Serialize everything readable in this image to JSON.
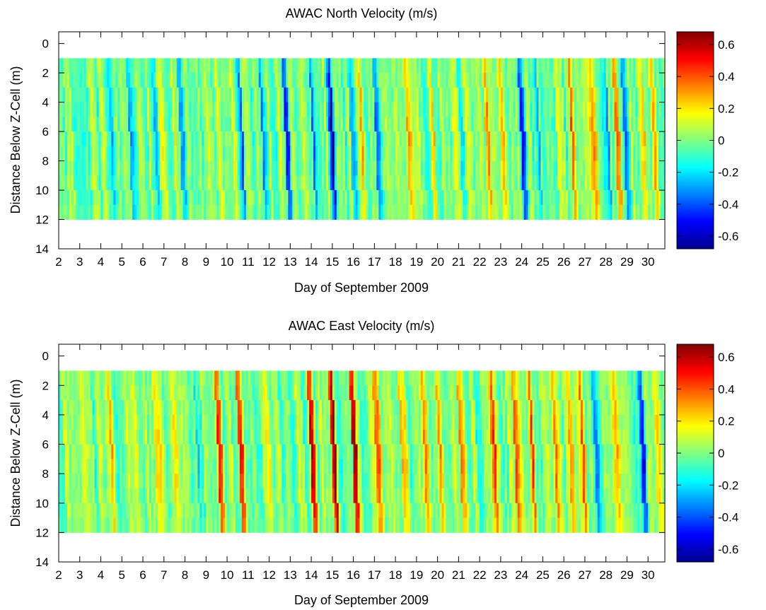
{
  "chart_data": [
    {
      "type": "heatmap",
      "title": "AWAC North Velocity (m/s)",
      "xlabel": "Day of September 2009",
      "ylabel": "Distance Below Z-Cell (m)",
      "xlim": [
        2,
        30.8
      ],
      "ylim": [
        14,
        -0.8
      ],
      "xticks": [
        "2",
        "3",
        "4",
        "5",
        "6",
        "7",
        "8",
        "9",
        "10",
        "11",
        "12",
        "13",
        "14",
        "15",
        "16",
        "17",
        "18",
        "19",
        "20",
        "21",
        "22",
        "23",
        "24",
        "25",
        "26",
        "27",
        "28",
        "29",
        "30"
      ],
      "yticks": [
        "0",
        "2",
        "4",
        "6",
        "8",
        "10",
        "12",
        "14"
      ],
      "data_extent": {
        "x": [
          2,
          30.8
        ],
        "depth": [
          1,
          12
        ]
      },
      "colorbar": {
        "range": [
          -0.68,
          0.68
        ],
        "ticks": [
          "0.6",
          "0.4",
          "0.2",
          "0",
          "-0.2",
          "-0.4",
          "-0.6"
        ],
        "colormap": "jet"
      },
      "features": [
        {
          "day": 3.0,
          "value": -0.2
        },
        {
          "day": 4.4,
          "value": -0.3
        },
        {
          "day": 5.3,
          "value": -0.25
        },
        {
          "day": 6.4,
          "value": -0.2
        },
        {
          "day": 7.7,
          "value": -0.22
        },
        {
          "day": 9.4,
          "value": 0.15
        },
        {
          "day": 10.5,
          "value": -0.35
        },
        {
          "day": 11.6,
          "value": -0.2
        },
        {
          "day": 12.7,
          "value": -0.45
        },
        {
          "day": 14.0,
          "value": -0.4
        },
        {
          "day": 14.8,
          "value": -0.55
        },
        {
          "day": 15.8,
          "value": -0.4
        },
        {
          "day": 16.2,
          "value": 0.15
        },
        {
          "day": 17.0,
          "value": -0.35
        },
        {
          "day": 18.5,
          "value": 0.15
        },
        {
          "day": 19.6,
          "value": 0.12
        },
        {
          "day": 21.0,
          "value": -0.15
        },
        {
          "day": 22.2,
          "value": 0.3
        },
        {
          "day": 22.9,
          "value": 0.25
        },
        {
          "day": 23.9,
          "value": -0.45
        },
        {
          "day": 24.6,
          "value": -0.3
        },
        {
          "day": 25.6,
          "value": 0.22
        },
        {
          "day": 26.3,
          "value": 0.28
        },
        {
          "day": 27.2,
          "value": 0.4
        },
        {
          "day": 27.9,
          "value": -0.35
        },
        {
          "day": 28.4,
          "value": 0.35
        },
        {
          "day": 28.8,
          "value": -0.4
        },
        {
          "day": 29.6,
          "value": 0.25
        },
        {
          "day": 30.2,
          "value": 0.15
        }
      ]
    },
    {
      "type": "heatmap",
      "title": "AWAC East Velocity (m/s)",
      "xlabel": "Day of September 2009",
      "ylabel": "Distance Below Z-Cell (m)",
      "xlim": [
        2,
        30.8
      ],
      "ylim": [
        14,
        -0.8
      ],
      "xticks": [
        "2",
        "3",
        "4",
        "5",
        "6",
        "7",
        "8",
        "9",
        "10",
        "11",
        "12",
        "13",
        "14",
        "15",
        "16",
        "17",
        "18",
        "19",
        "20",
        "21",
        "22",
        "23",
        "24",
        "25",
        "26",
        "27",
        "28",
        "29",
        "30"
      ],
      "yticks": [
        "0",
        "2",
        "4",
        "6",
        "8",
        "10",
        "12",
        "14"
      ],
      "data_extent": {
        "x": [
          2,
          30.8
        ],
        "depth": [
          1,
          12
        ]
      },
      "colorbar": {
        "range": [
          -0.68,
          0.68
        ],
        "ticks": [
          "0.6",
          "0.4",
          "0.2",
          "0",
          "-0.2",
          "-0.4",
          "-0.6"
        ],
        "colormap": "jet"
      },
      "features": [
        {
          "day": 3.0,
          "value": 0.12
        },
        {
          "day": 4.3,
          "value": 0.2
        },
        {
          "day": 5.3,
          "value": 0.18
        },
        {
          "day": 6.5,
          "value": 0.28
        },
        {
          "day": 7.4,
          "value": 0.22
        },
        {
          "day": 8.4,
          "value": -0.15
        },
        {
          "day": 9.5,
          "value": 0.45
        },
        {
          "day": 10.5,
          "value": 0.4
        },
        {
          "day": 11.8,
          "value": 0.3
        },
        {
          "day": 12.8,
          "value": -0.15
        },
        {
          "day": 13.9,
          "value": 0.55
        },
        {
          "day": 14.9,
          "value": 0.68
        },
        {
          "day": 15.9,
          "value": 0.62
        },
        {
          "day": 17.0,
          "value": 0.4
        },
        {
          "day": 18.2,
          "value": 0.25
        },
        {
          "day": 19.2,
          "value": 0.3
        },
        {
          "day": 20.0,
          "value": 0.28
        },
        {
          "day": 21.0,
          "value": 0.3
        },
        {
          "day": 21.8,
          "value": -0.2
        },
        {
          "day": 22.5,
          "value": 0.55
        },
        {
          "day": 23.6,
          "value": 0.45
        },
        {
          "day": 24.3,
          "value": 0.4
        },
        {
          "day": 25.4,
          "value": 0.3
        },
        {
          "day": 26.2,
          "value": 0.28
        },
        {
          "day": 26.8,
          "value": 0.35
        },
        {
          "day": 27.4,
          "value": -0.3
        },
        {
          "day": 28.4,
          "value": 0.25
        },
        {
          "day": 29.6,
          "value": -0.5
        },
        {
          "day": 30.3,
          "value": 0.25
        }
      ]
    }
  ]
}
